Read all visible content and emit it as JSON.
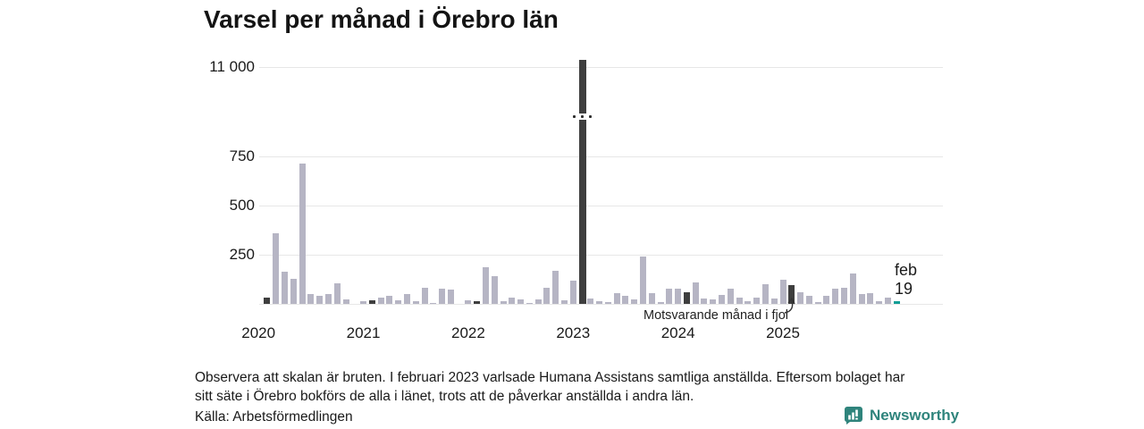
{
  "title": "Varsel per månad i Örebro län",
  "colors": {
    "bar": "#b6b5c4",
    "highlight_bar": "#3e3e3e",
    "current_bar": "#129e96",
    "grid": "#e7e7e7",
    "text": "#1a1a1a",
    "logo_teal": "#2f847c"
  },
  "chart_data": {
    "type": "bar",
    "title": "Varsel per månad i Örebro län",
    "ylabel": "",
    "xlabel": "",
    "grid": true,
    "scale_break": {
      "between": [
        750,
        11000
      ],
      "note": "skalan är bruten"
    },
    "y_ticks": [
      {
        "label": "250",
        "value": 250
      },
      {
        "label": "500",
        "value": 500
      },
      {
        "label": "750",
        "value": 750
      },
      {
        "label": "11 000",
        "value": 11000
      }
    ],
    "x_ticks": [
      "2020",
      "2021",
      "2022",
      "2023",
      "2024",
      "2025"
    ],
    "highlighted_month_rule": "februari varje år markerad i mörkgrått; februari 2026 (innevarande månad) i turkos",
    "series": [
      {
        "year": 2020,
        "values": [
          0,
          32,
          360,
          165,
          127,
          715,
          50,
          40,
          50,
          105,
          23,
          0
        ]
      },
      {
        "year": 2021,
        "values": [
          15,
          20,
          30,
          42,
          18,
          48,
          12,
          83,
          5,
          76,
          71,
          0
        ]
      },
      {
        "year": 2022,
        "values": [
          18,
          15,
          185,
          140,
          15,
          33,
          23,
          3,
          21,
          83,
          167,
          18
        ]
      },
      {
        "year": 2023,
        "values": [
          118,
          11050,
          26,
          15,
          8,
          53,
          41,
          23,
          242,
          53,
          11,
          76
        ]
      },
      {
        "year": 2024,
        "values": [
          76,
          60,
          110,
          27,
          23,
          45,
          79,
          30,
          12,
          33,
          100,
          27
        ]
      },
      {
        "year": 2025,
        "values": [
          125,
          95,
          58,
          42,
          8,
          42,
          76,
          83,
          155,
          48,
          55,
          15
        ]
      },
      {
        "year": 2026,
        "values": [
          30,
          15
        ]
      }
    ],
    "annotations": [
      {
        "text": "Motsvarande månad i fjol",
        "target": "februari 2025"
      },
      {
        "text_line1": "feb",
        "text_line2": "19",
        "target": "februari 2026 (t.o.m. 19 feb)"
      }
    ]
  },
  "footer": {
    "note_line1": "Observera att skalan är bruten. I februari 2023 varlsade Humana Assistans samtliga anställda. Eftersom bolaget har",
    "note_line2": "sitt säte i Örebro bokförs de alla i länet, trots att de påverkar anställda i andra län.",
    "source": "Källa: Arbetsförmedlingen"
  },
  "logo": {
    "text": "Newsworthy"
  }
}
